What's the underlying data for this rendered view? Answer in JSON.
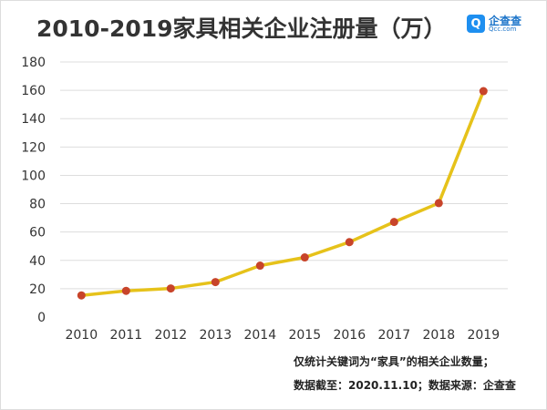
{
  "chart_data": {
    "type": "line",
    "title": "2010-2019家具相关企业注册量（万）",
    "categories": [
      "2010",
      "2011",
      "2012",
      "2013",
      "2014",
      "2015",
      "2016",
      "2017",
      "2018",
      "2019"
    ],
    "values": [
      15.3,
      18.5,
      20.2,
      24.7,
      36.3,
      42.1,
      52.9,
      67.1,
      80.4,
      159.4
    ],
    "ylim": [
      0,
      180
    ],
    "yticks": [
      0,
      20,
      40,
      60,
      80,
      100,
      120,
      140,
      160,
      180
    ],
    "grid": true,
    "line_color": "#e6c21a",
    "marker_color": "#c8442a"
  },
  "logo": {
    "mark": "Q",
    "name": "企查查",
    "domain": "Qcc.com"
  },
  "notes": [
    "仅统计关键词为“家具”的相关企业数量；",
    "数据截至：2020.11.10；数据来源：企查查"
  ]
}
